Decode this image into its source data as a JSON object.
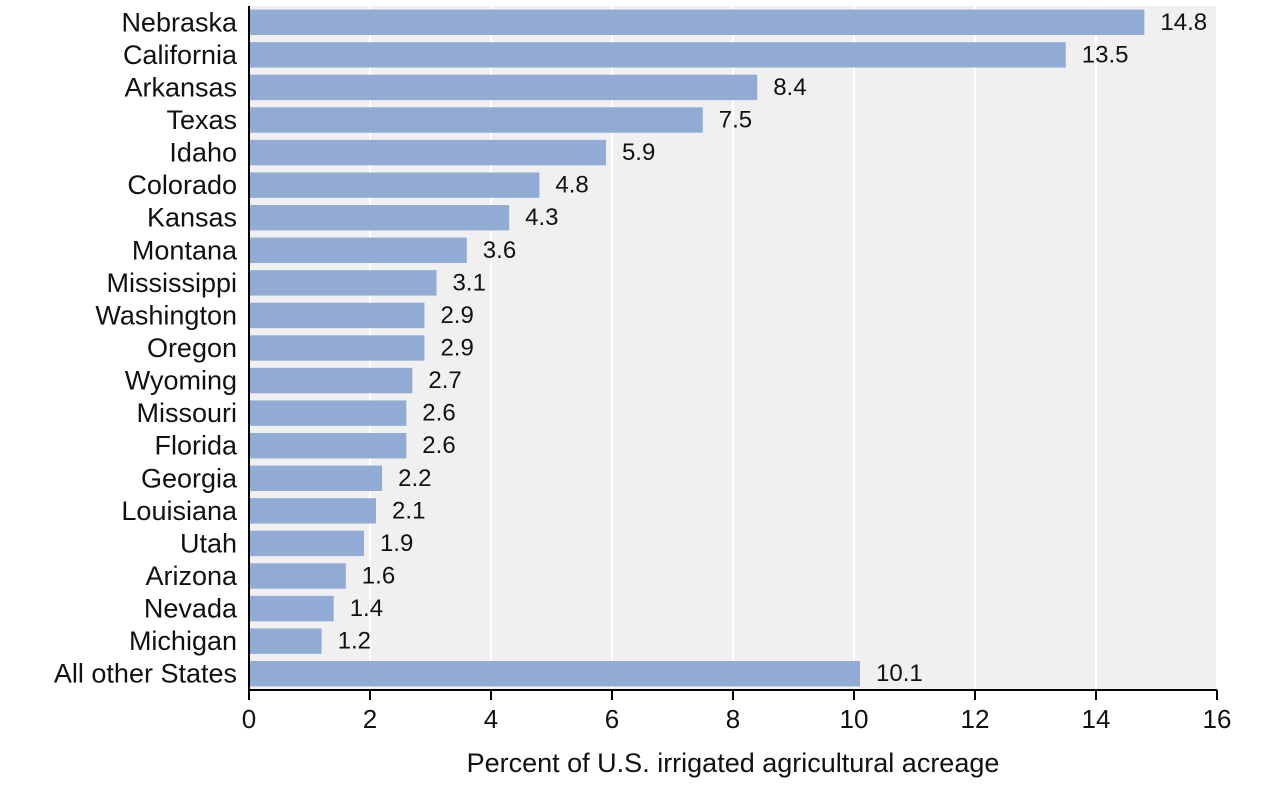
{
  "chart_data": {
    "type": "bar",
    "orientation": "horizontal",
    "categories": [
      "Nebraska",
      "California",
      "Arkansas",
      "Texas",
      "Idaho",
      "Colorado",
      "Kansas",
      "Montana",
      "Mississippi",
      "Washington",
      "Oregon",
      "Wyoming",
      "Missouri",
      "Florida",
      "Georgia",
      "Louisiana",
      "Utah",
      "Arizona",
      "Nevada",
      "Michigan",
      "All other States"
    ],
    "values": [
      14.8,
      13.5,
      8.4,
      7.5,
      5.9,
      4.8,
      4.3,
      3.6,
      3.1,
      2.9,
      2.9,
      2.7,
      2.6,
      2.6,
      2.2,
      2.1,
      1.9,
      1.6,
      1.4,
      1.2,
      10.1
    ],
    "value_labels": [
      "14.8",
      "13.5",
      "8.4",
      "7.5",
      "5.9",
      "4.8",
      "4.3",
      "3.6",
      "3.1",
      "2.9",
      "2.9",
      "2.7",
      "2.6",
      "2.6",
      "2.2",
      "2.1",
      "1.9",
      "1.6",
      "1.4",
      "1.2",
      "10.1"
    ],
    "title": "",
    "xlabel": "Percent of U.S. irrigated agricultural acreage",
    "ylabel": "",
    "xlim": [
      0,
      16
    ],
    "xticks": [
      0,
      2,
      4,
      6,
      8,
      10,
      12,
      14,
      16
    ],
    "grid": "vertical",
    "legend": "none",
    "colors": {
      "bar": "#92abd5",
      "plot_background": "#f0f0f0",
      "gridline": "#ffffff",
      "axis": "#000000",
      "text": "#111111"
    }
  }
}
